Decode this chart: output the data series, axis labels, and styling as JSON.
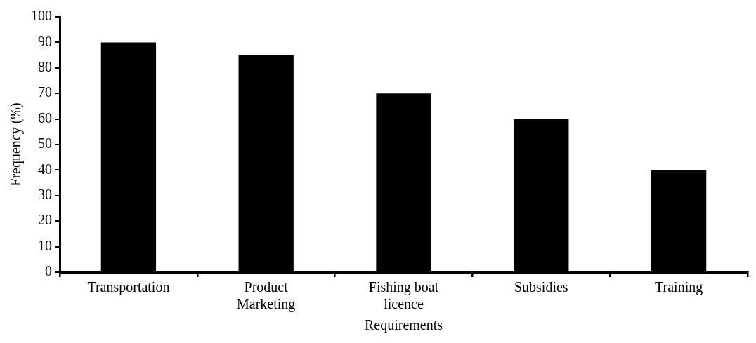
{
  "chart_data": {
    "type": "bar",
    "xlabel": "Requirements",
    "ylabel": "Frequency (%)",
    "categories": [
      "Transportation",
      "Product Marketing",
      "Fishing boat licence",
      "Subsidies",
      "Training"
    ],
    "values": [
      90,
      85,
      70,
      60,
      40
    ],
    "color": "#000000",
    "ylim": [
      0,
      100
    ],
    "yticks": [
      0,
      10,
      20,
      30,
      40,
      50,
      60,
      70,
      80,
      90,
      100
    ],
    "grid": false,
    "legend": false
  }
}
